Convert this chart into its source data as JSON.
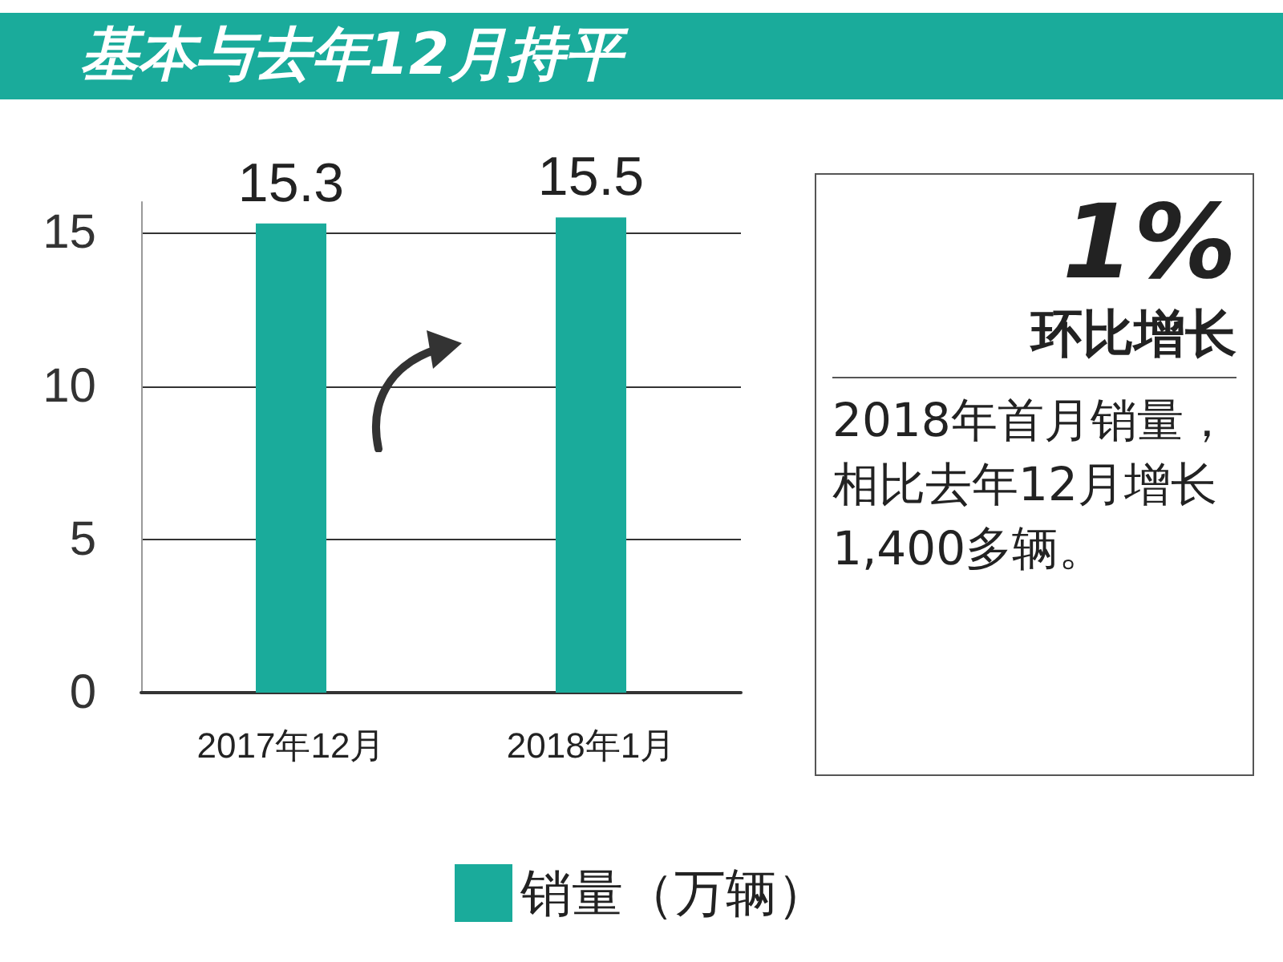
{
  "chart_data": {
    "type": "bar",
    "title": "基本与去年12月持平",
    "categories": [
      "2017年12月",
      "2018年1月"
    ],
    "series": [
      {
        "name": "销量（万辆）",
        "color": "#1aab9b",
        "values": [
          15.3,
          15.5
        ]
      }
    ],
    "ylim": [
      0,
      16
    ],
    "yticks": [
      0,
      5,
      10,
      15
    ],
    "grid": "y",
    "legend": "bottom",
    "data_labels": true,
    "annotations": [
      "1%",
      "环比增长",
      "2018年首月销量，相比去年12月增长1,400多辆。"
    ]
  }
}
